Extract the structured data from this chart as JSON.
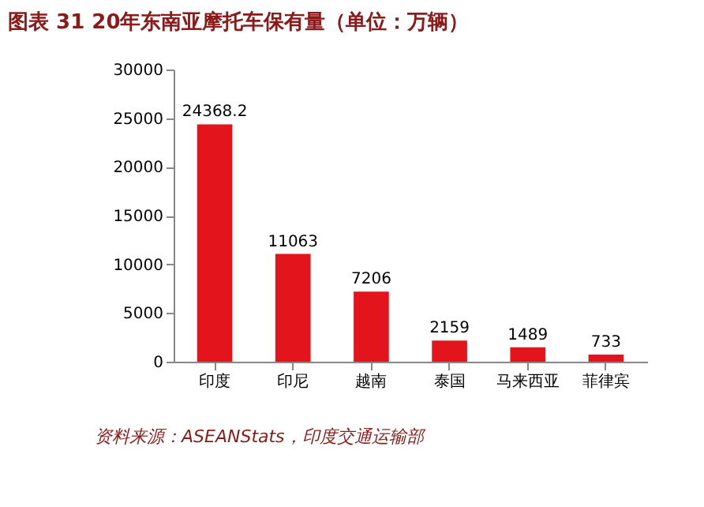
{
  "chart_data": {
    "type": "bar",
    "title": "图表 31  20年东南亚摩托车保有量（单位：万辆）",
    "categories": [
      "印度",
      "印尼",
      "越南",
      "泰国",
      "马来西亚",
      "菲律宾"
    ],
    "values": [
      24368.2,
      11063,
      7206,
      2159,
      1489,
      733
    ],
    "color": "#e3141c",
    "ylim": [
      0,
      30000
    ],
    "yticks": [
      0,
      5000,
      10000,
      15000,
      20000,
      25000,
      30000
    ],
    "data_labels": true,
    "grid": false,
    "annotations": [
      "资料来源：ASEANStats，印度交通运输部"
    ]
  }
}
